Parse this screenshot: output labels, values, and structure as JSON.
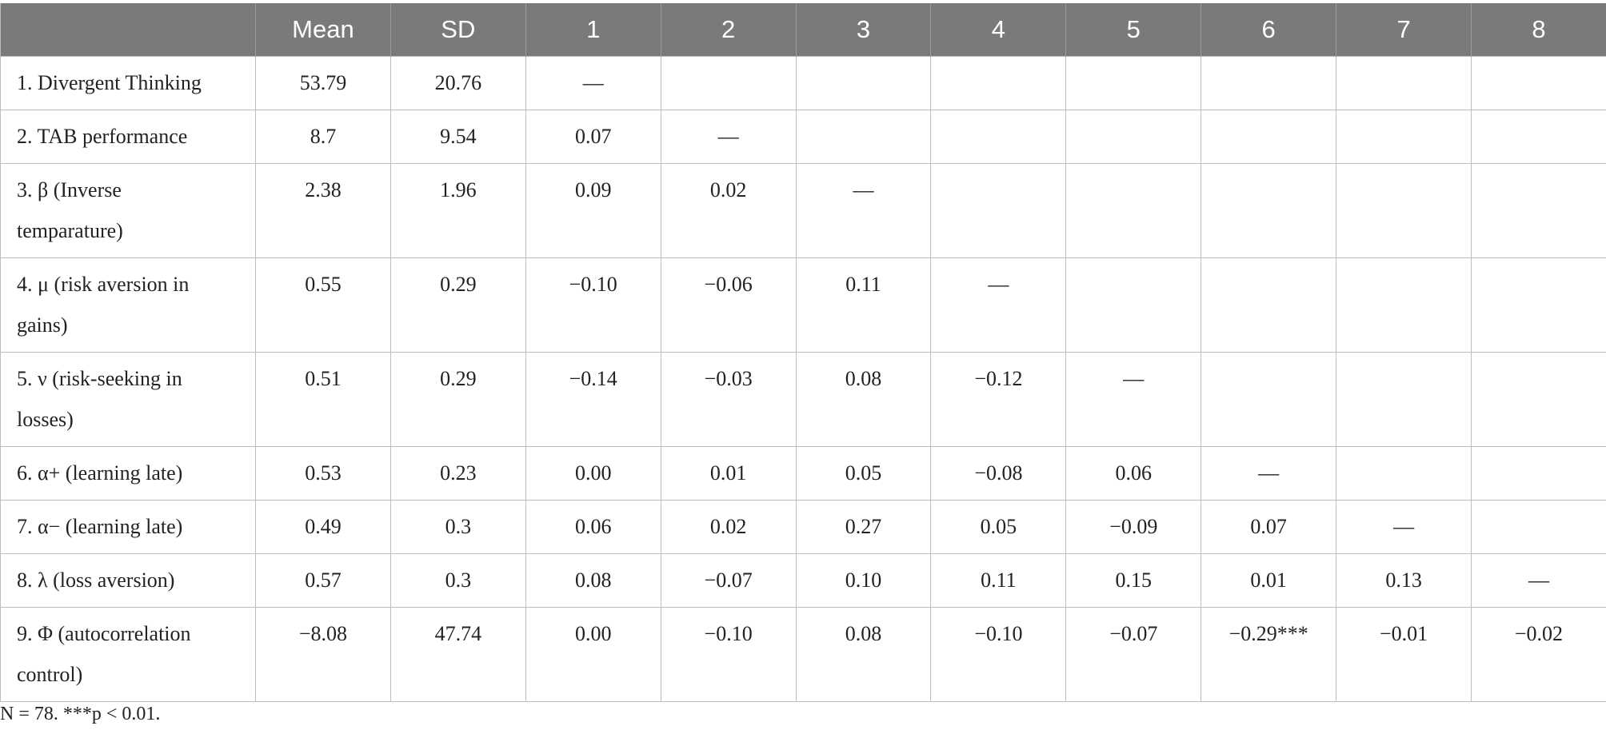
{
  "table": {
    "columns": [
      "",
      "Mean",
      "SD",
      "1",
      "2",
      "3",
      "4",
      "5",
      "6",
      "7",
      "8"
    ],
    "rows": [
      [
        "1. Divergent Thinking",
        "53.79",
        "20.76",
        "—",
        "",
        "",
        "",
        "",
        "",
        "",
        ""
      ],
      [
        "2. TAB performance",
        "8.7",
        "9.54",
        "0.07",
        "—",
        "",
        "",
        "",
        "",
        "",
        ""
      ],
      [
        "3. β (Inverse temparature)",
        "2.38",
        "1.96",
        "0.09",
        "0.02",
        "—",
        "",
        "",
        "",
        "",
        ""
      ],
      [
        "4. μ (risk aversion in gains)",
        "0.55",
        "0.29",
        "−0.10",
        "−0.06",
        "0.11",
        "—",
        "",
        "",
        "",
        ""
      ],
      [
        "5. ν (risk-seeking in losses)",
        "0.51",
        "0.29",
        "−0.14",
        "−0.03",
        "0.08",
        "−0.12",
        "—",
        "",
        "",
        ""
      ],
      [
        "6. α+ (learning late)",
        "0.53",
        "0.23",
        "0.00",
        "0.01",
        "0.05",
        "−0.08",
        "0.06",
        "—",
        "",
        ""
      ],
      [
        "7. α− (learning late)",
        "0.49",
        "0.3",
        "0.06",
        "0.02",
        "0.27",
        "0.05",
        "−0.09",
        "0.07",
        "—",
        ""
      ],
      [
        "8. λ (loss aversion)",
        "0.57",
        "0.3",
        "0.08",
        "−0.07",
        "0.10",
        "0.11",
        "0.15",
        "0.01",
        "0.13",
        "—"
      ],
      [
        "9. Φ (autocorrelation control)",
        "−8.08",
        "47.74",
        "0.00",
        "−0.10",
        "0.08",
        "−0.10",
        "−0.07",
        "−0.29***",
        "−0.01",
        "−0.02"
      ]
    ]
  },
  "note": "N = 78. ***p < 0.01."
}
